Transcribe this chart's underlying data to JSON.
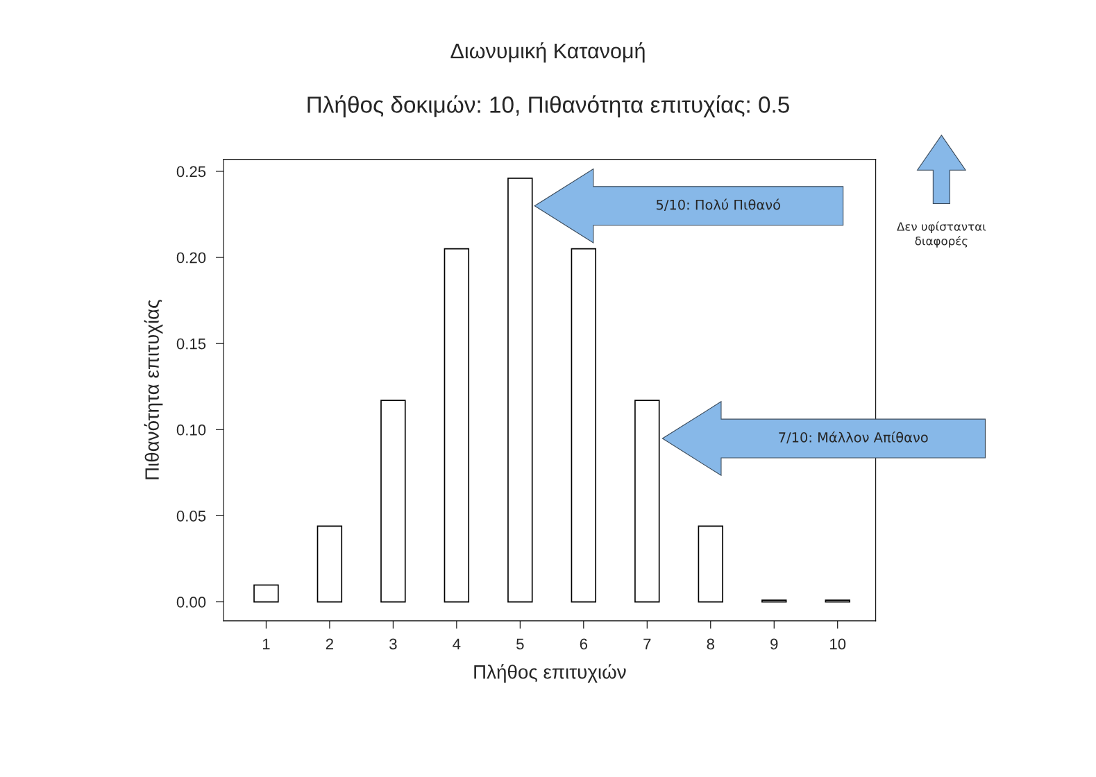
{
  "chart_data": {
    "type": "bar",
    "title": "Διωνυμική Κατανομή",
    "subtitle": "Πλήθος δοκιμών: 10, Πιθανότητα επιτυχίας: 0.5",
    "xlabel": "Πλήθος επιτυχιών",
    "ylabel": "Πιθανότητα επιτυχίας",
    "categories": [
      "1",
      "2",
      "3",
      "4",
      "5",
      "6",
      "7",
      "8",
      "9",
      "10"
    ],
    "values": [
      0.0098,
      0.044,
      0.117,
      0.205,
      0.246,
      0.205,
      0.117,
      0.044,
      0.001,
      0.001
    ],
    "color": "#ffffff",
    "ylim": [
      -0.011,
      0.257
    ],
    "yticks": [
      {
        "value": 0,
        "label": "0.00"
      },
      0.05,
      {
        "value": 0.1,
        "label": "0.10"
      },
      0.15,
      {
        "value": 0.2,
        "label": "0.20"
      },
      0.25
    ],
    "grid": false,
    "legend": false,
    "annotations": [
      "5/10: Πολύ Πιθανό",
      "7/10: Μάλλον Απίθανο",
      "Δεν υφίστανται διαφορές"
    ]
  }
}
